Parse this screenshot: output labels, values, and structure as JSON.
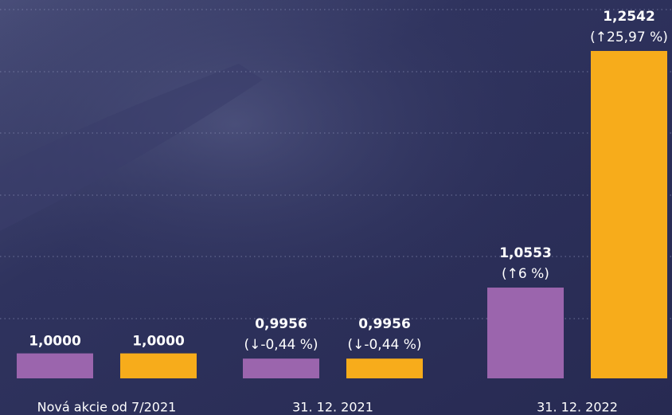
{
  "chart_data": {
    "type": "bar",
    "categories": [
      "Nová akcie od 7/2021",
      "31. 12. 2021",
      "31. 12. 2022"
    ],
    "series": [
      {
        "color": "#9b65ad",
        "values": [
          1.0,
          0.9956,
          1.0553
        ],
        "value_labels": [
          "1,0000",
          "0,9956",
          "1,0553"
        ],
        "change_labels": [
          null,
          "(↓-0,44 %)",
          "(↑6 %)"
        ]
      },
      {
        "color": "#f7ac1b",
        "values": [
          1.0,
          0.9956,
          1.2542
        ],
        "value_labels": [
          "1,0000",
          "0,9956",
          "1,2542"
        ],
        "change_labels": [
          null,
          "(↓-0,44 %)",
          "(↑25,97 %)"
        ]
      }
    ],
    "ylim": [
      0.979,
      1.289
    ],
    "grid": true
  }
}
